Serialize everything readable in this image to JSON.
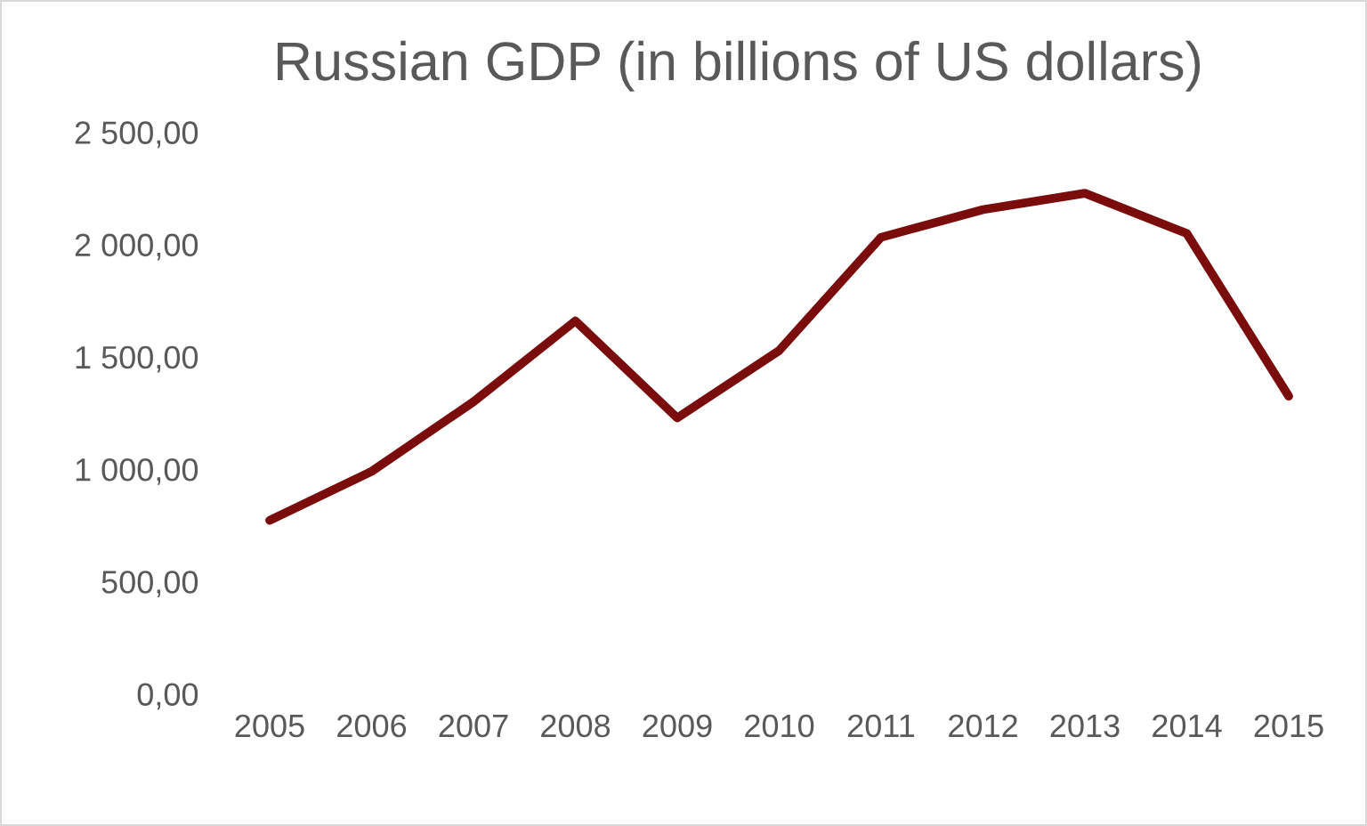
{
  "chart_data": {
    "type": "line",
    "title": "Russian GDP (in billions of US dollars)",
    "categories": [
      "2005",
      "2006",
      "2007",
      "2008",
      "2009",
      "2010",
      "2011",
      "2012",
      "2013",
      "2014",
      "2015"
    ],
    "series": [
      {
        "color": "#7b0c0c",
        "values": [
          772,
          990,
          1300,
          1660,
          1228,
          1528,
          2032,
          2155,
          2228,
          2049,
          1325
        ]
      }
    ],
    "ylim": [
      0,
      2500
    ],
    "yticks": [
      {
        "value": 0,
        "label": "0,00"
      },
      {
        "value": 500,
        "label": "500,00"
      },
      {
        "value": 1000,
        "label": "1 000,00"
      },
      {
        "value": 1500,
        "label": "1 500,00"
      },
      {
        "value": 2000,
        "label": "2 000,00"
      },
      {
        "value": 2500,
        "label": "2 500,00"
      }
    ],
    "grid": false,
    "marker": "none",
    "line_style": "solid",
    "legend": false
  }
}
